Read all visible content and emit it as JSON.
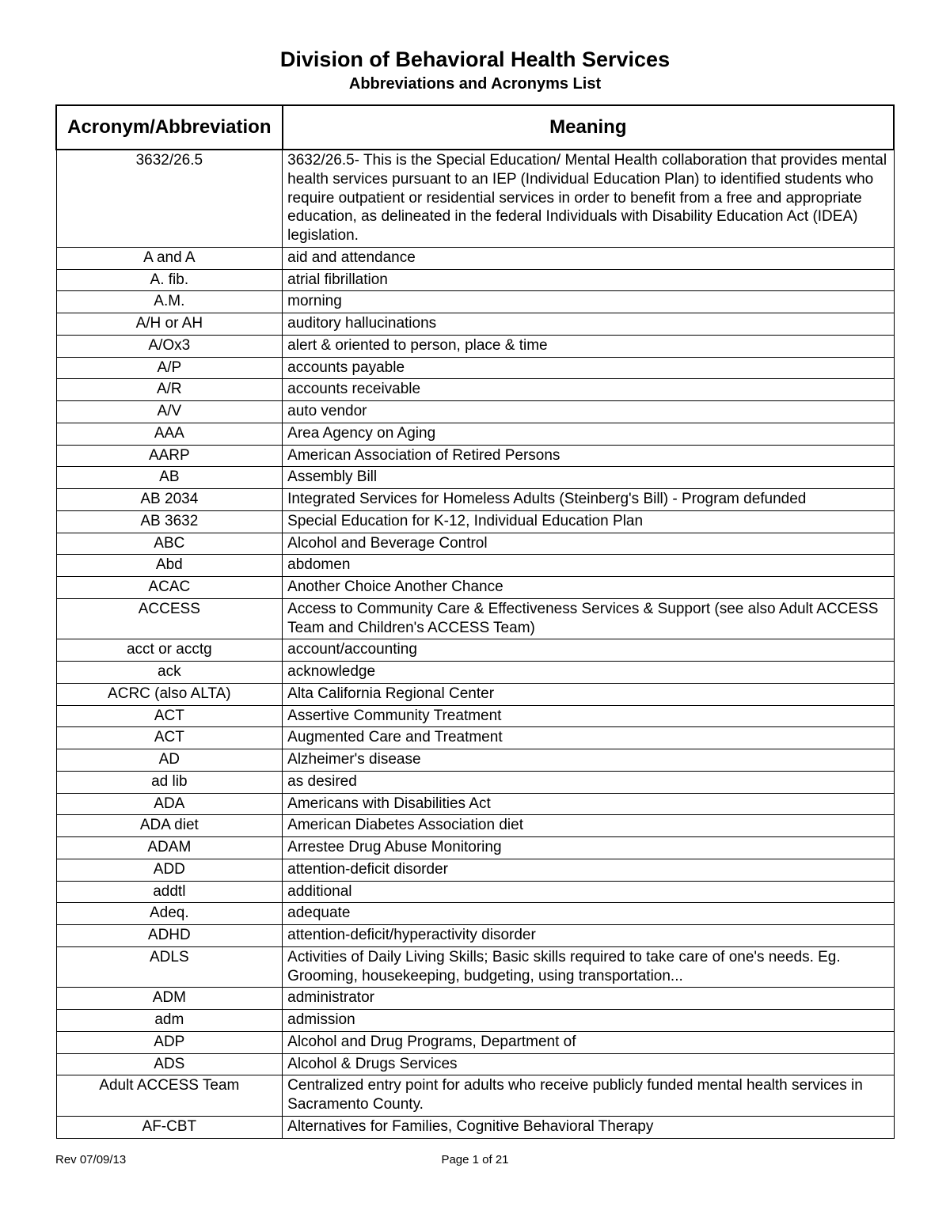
{
  "header": {
    "title": "Division of Behavioral Health Services",
    "subtitle": "Abbreviations and Acronyms List"
  },
  "table": {
    "headers": {
      "col1": "Acronym/Abbreviation",
      "col2": "Meaning"
    },
    "rows": [
      {
        "acr": "3632/26.5",
        "meaning": "3632/26.5-  This is the Special Education/ Mental Health collaboration that provides mental health services pursuant to an IEP (Individual Education Plan) to identified students who require outpatient or residential services in order to benefit from a free and appropriate education, as delineated in the federal Individuals with Disability Education Act (IDEA) legislation."
      },
      {
        "acr": "A and A",
        "meaning": "aid and attendance"
      },
      {
        "acr": "A. fib.",
        "meaning": "atrial fibrillation"
      },
      {
        "acr": "A.M.",
        "meaning": "morning"
      },
      {
        "acr": "A/H or AH",
        "meaning": "auditory hallucinations"
      },
      {
        "acr": "A/Ox3",
        "meaning": "alert & oriented to person, place & time"
      },
      {
        "acr": "A/P",
        "meaning": "accounts payable"
      },
      {
        "acr": "A/R",
        "meaning": "accounts receivable"
      },
      {
        "acr": "A/V",
        "meaning": "auto vendor"
      },
      {
        "acr": "AAA",
        "meaning": "Area Agency on Aging"
      },
      {
        "acr": "AARP",
        "meaning": "American Association of Retired Persons"
      },
      {
        "acr": "AB",
        "meaning": "Assembly Bill"
      },
      {
        "acr": "AB 2034",
        "meaning": "Integrated Services for Homeless Adults (Steinberg's Bill) - Program defunded"
      },
      {
        "acr": "AB 3632",
        "meaning": "Special Education for K-12, Individual Education Plan"
      },
      {
        "acr": "ABC",
        "meaning": "Alcohol and Beverage Control"
      },
      {
        "acr": "Abd",
        "meaning": "abdomen"
      },
      {
        "acr": "ACAC",
        "meaning": "Another Choice Another Chance"
      },
      {
        "acr": "ACCESS",
        "meaning": "Access to Community Care & Effectiveness Services & Support (see also Adult ACCESS Team and Children's ACCESS Team)"
      },
      {
        "acr": "acct or acctg",
        "meaning": "account/accounting"
      },
      {
        "acr": "ack",
        "meaning": "acknowledge"
      },
      {
        "acr": "ACRC (also ALTA)",
        "meaning": "Alta California Regional Center"
      },
      {
        "acr": "ACT",
        "meaning": "Assertive Community Treatment"
      },
      {
        "acr": "ACT",
        "meaning": "Augmented Care and Treatment"
      },
      {
        "acr": "AD",
        "meaning": "Alzheimer's disease"
      },
      {
        "acr": "ad lib",
        "meaning": "as desired"
      },
      {
        "acr": "ADA",
        "meaning": "Americans with Disabilities Act"
      },
      {
        "acr": "ADA diet",
        "meaning": "American Diabetes Association diet"
      },
      {
        "acr": "ADAM",
        "meaning": "Arrestee Drug Abuse Monitoring"
      },
      {
        "acr": "ADD",
        "meaning": "attention-deficit disorder"
      },
      {
        "acr": "addtl",
        "meaning": "additional"
      },
      {
        "acr": "Adeq.",
        "meaning": "adequate"
      },
      {
        "acr": "ADHD",
        "meaning": "attention-deficit/hyperactivity disorder"
      },
      {
        "acr": "ADLS",
        "meaning": "Activities of Daily Living Skills; Basic skills required to take care of one's needs. Eg. Grooming, housekeeping, budgeting, using transportation..."
      },
      {
        "acr": "ADM",
        "meaning": "administrator"
      },
      {
        "acr": "adm",
        "meaning": "admission"
      },
      {
        "acr": "ADP",
        "meaning": "Alcohol and Drug Programs, Department of"
      },
      {
        "acr": "ADS",
        "meaning": "Alcohol & Drugs Services"
      },
      {
        "acr": "Adult ACCESS Team",
        "meaning": "Centralized entry point for adults who receive publicly funded mental health services in Sacramento County."
      },
      {
        "acr": "AF-CBT",
        "meaning": "Alternatives for Families, Cognitive Behavioral Therapy"
      }
    ]
  },
  "footer": {
    "revision": "Rev 07/09/13",
    "pageinfo": "Page 1 of 21"
  }
}
